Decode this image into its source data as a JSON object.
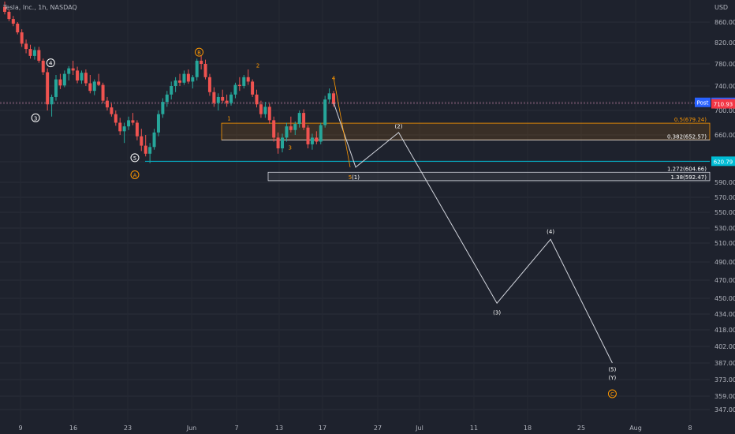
{
  "header": {
    "symbol_title": "Tesla, Inc., 1h, NASDAQ",
    "currency": "USD"
  },
  "chart_data": {
    "type": "candlestick",
    "title": "Tesla, Inc., 1h, NASDAQ",
    "x_axis": {
      "labels": [
        "9",
        "16",
        "23",
        "Jun",
        "7",
        "13",
        "17",
        "27",
        "Jul",
        "11",
        "18",
        "25",
        "Aug",
        "8"
      ]
    },
    "y_axis": {
      "unit": "USD",
      "range": [
        340,
        888
      ],
      "ticks": [
        860,
        820,
        780,
        740,
        700,
        660,
        620,
        590,
        570,
        550,
        530,
        510,
        490,
        470,
        450,
        434,
        418,
        402,
        387,
        373,
        359,
        347
      ]
    },
    "price_badges": [
      {
        "label": "Post",
        "value": "713.28",
        "color": "#2962ff"
      },
      {
        "value": "710.93",
        "color": "#f23645"
      },
      {
        "value": "620.79",
        "color": "#00bcd4"
      }
    ],
    "candles_sampled": [
      {
        "o": 890,
        "h": 900,
        "l": 875,
        "c": 880
      },
      {
        "o": 880,
        "h": 884,
        "l": 862,
        "c": 866
      },
      {
        "o": 866,
        "h": 872,
        "l": 852,
        "c": 857
      },
      {
        "o": 857,
        "h": 860,
        "l": 836,
        "c": 840
      },
      {
        "o": 840,
        "h": 846,
        "l": 812,
        "c": 818
      },
      {
        "o": 818,
        "h": 826,
        "l": 800,
        "c": 808
      },
      {
        "o": 808,
        "h": 816,
        "l": 790,
        "c": 795
      },
      {
        "o": 795,
        "h": 812,
        "l": 788,
        "c": 806
      },
      {
        "o": 806,
        "h": 812,
        "l": 782,
        "c": 786
      },
      {
        "o": 786,
        "h": 790,
        "l": 760,
        "c": 765
      },
      {
        "o": 765,
        "h": 772,
        "l": 700,
        "c": 710
      },
      {
        "o": 710,
        "h": 726,
        "l": 690,
        "c": 722
      },
      {
        "o": 722,
        "h": 760,
        "l": 716,
        "c": 752
      },
      {
        "o": 752,
        "h": 762,
        "l": 735,
        "c": 741
      },
      {
        "o": 741,
        "h": 768,
        "l": 738,
        "c": 762
      },
      {
        "o": 762,
        "h": 776,
        "l": 750,
        "c": 772
      },
      {
        "o": 772,
        "h": 786,
        "l": 760,
        "c": 768
      },
      {
        "o": 768,
        "h": 775,
        "l": 745,
        "c": 750
      },
      {
        "o": 750,
        "h": 768,
        "l": 744,
        "c": 764
      },
      {
        "o": 764,
        "h": 770,
        "l": 740,
        "c": 745
      },
      {
        "o": 745,
        "h": 760,
        "l": 728,
        "c": 732
      },
      {
        "o": 732,
        "h": 752,
        "l": 725,
        "c": 748
      },
      {
        "o": 748,
        "h": 762,
        "l": 740,
        "c": 742
      },
      {
        "o": 742,
        "h": 746,
        "l": 712,
        "c": 716
      },
      {
        "o": 716,
        "h": 722,
        "l": 700,
        "c": 705
      },
      {
        "o": 705,
        "h": 712,
        "l": 690,
        "c": 694
      },
      {
        "o": 694,
        "h": 700,
        "l": 675,
        "c": 680
      },
      {
        "o": 680,
        "h": 688,
        "l": 660,
        "c": 666
      },
      {
        "o": 666,
        "h": 680,
        "l": 648,
        "c": 674
      },
      {
        "o": 674,
        "h": 690,
        "l": 668,
        "c": 684
      },
      {
        "o": 684,
        "h": 696,
        "l": 676,
        "c": 680
      },
      {
        "o": 680,
        "h": 684,
        "l": 652,
        "c": 658
      },
      {
        "o": 658,
        "h": 670,
        "l": 636,
        "c": 644
      },
      {
        "o": 644,
        "h": 660,
        "l": 628,
        "c": 632
      },
      {
        "o": 632,
        "h": 648,
        "l": 618,
        "c": 642
      },
      {
        "o": 642,
        "h": 670,
        "l": 638,
        "c": 664
      },
      {
        "o": 664,
        "h": 700,
        "l": 658,
        "c": 694
      },
      {
        "o": 694,
        "h": 720,
        "l": 688,
        "c": 714
      },
      {
        "o": 714,
        "h": 732,
        "l": 706,
        "c": 726
      },
      {
        "o": 726,
        "h": 748,
        "l": 718,
        "c": 740
      },
      {
        "o": 740,
        "h": 756,
        "l": 730,
        "c": 750
      },
      {
        "o": 750,
        "h": 762,
        "l": 740,
        "c": 746
      },
      {
        "o": 746,
        "h": 768,
        "l": 742,
        "c": 762
      },
      {
        "o": 762,
        "h": 770,
        "l": 744,
        "c": 748
      },
      {
        "o": 748,
        "h": 760,
        "l": 736,
        "c": 756
      },
      {
        "o": 756,
        "h": 790,
        "l": 750,
        "c": 786
      },
      {
        "o": 786,
        "h": 796,
        "l": 770,
        "c": 780
      },
      {
        "o": 780,
        "h": 788,
        "l": 752,
        "c": 756
      },
      {
        "o": 756,
        "h": 762,
        "l": 724,
        "c": 730
      },
      {
        "o": 730,
        "h": 738,
        "l": 706,
        "c": 712
      },
      {
        "o": 712,
        "h": 728,
        "l": 700,
        "c": 722
      },
      {
        "o": 722,
        "h": 734,
        "l": 712,
        "c": 716
      },
      {
        "o": 716,
        "h": 726,
        "l": 706,
        "c": 712
      },
      {
        "o": 712,
        "h": 730,
        "l": 708,
        "c": 726
      },
      {
        "o": 726,
        "h": 746,
        "l": 720,
        "c": 742
      },
      {
        "o": 742,
        "h": 756,
        "l": 732,
        "c": 740
      },
      {
        "o": 740,
        "h": 760,
        "l": 736,
        "c": 756
      },
      {
        "o": 756,
        "h": 770,
        "l": 742,
        "c": 748
      },
      {
        "o": 748,
        "h": 752,
        "l": 722,
        "c": 726
      },
      {
        "o": 726,
        "h": 734,
        "l": 705,
        "c": 710
      },
      {
        "o": 710,
        "h": 716,
        "l": 688,
        "c": 694
      },
      {
        "o": 694,
        "h": 714,
        "l": 688,
        "c": 706
      },
      {
        "o": 706,
        "h": 712,
        "l": 678,
        "c": 684
      },
      {
        "o": 684,
        "h": 690,
        "l": 650,
        "c": 656
      },
      {
        "o": 656,
        "h": 664,
        "l": 632,
        "c": 640
      },
      {
        "o": 640,
        "h": 662,
        "l": 634,
        "c": 656
      },
      {
        "o": 656,
        "h": 680,
        "l": 650,
        "c": 674
      },
      {
        "o": 674,
        "h": 690,
        "l": 664,
        "c": 668
      },
      {
        "o": 668,
        "h": 682,
        "l": 660,
        "c": 678
      },
      {
        "o": 678,
        "h": 700,
        "l": 672,
        "c": 696
      },
      {
        "o": 696,
        "h": 702,
        "l": 668,
        "c": 672
      },
      {
        "o": 672,
        "h": 676,
        "l": 640,
        "c": 646
      },
      {
        "o": 646,
        "h": 662,
        "l": 638,
        "c": 656
      },
      {
        "o": 656,
        "h": 666,
        "l": 646,
        "c": 650
      },
      {
        "o": 650,
        "h": 680,
        "l": 646,
        "c": 676
      },
      {
        "o": 676,
        "h": 724,
        "l": 672,
        "c": 718
      },
      {
        "o": 718,
        "h": 736,
        "l": 712,
        "c": 728
      },
      {
        "o": 728,
        "h": 732,
        "l": 706,
        "c": 711
      }
    ],
    "horizontal_lines": [
      {
        "value": 620.79,
        "color": "#00bcd4"
      },
      {
        "value": 713.28,
        "color": "#9c6b8a"
      },
      {
        "value": 710.93,
        "color": "#9c6b8a"
      }
    ],
    "fib_zones": [
      {
        "top": 679.24,
        "bottom": 652.57,
        "fill": "rgba(255,152,0,0.12)",
        "labels": [
          "0.5(679.24)",
          "0.382(652.57)"
        ]
      },
      {
        "top": 604.66,
        "bottom": 592.47,
        "fill": "rgba(255,255,255,0.06)",
        "labels": [
          "1.272(604.66)",
          "1.38(592.47)"
        ]
      }
    ],
    "projection_path": [
      {
        "x": "Jun 19",
        "y": 713
      },
      {
        "x": "Jun 23",
        "y": 612,
        "label": "(1)"
      },
      {
        "x": "Jun 29",
        "y": 664,
        "label": "(2)"
      },
      {
        "x": "Jul 14",
        "y": 445,
        "label": "(3)"
      },
      {
        "x": "Jul 21",
        "y": 515,
        "label": "(4)"
      },
      {
        "x": "Jul 29",
        "y": 387,
        "label": "(5)"
      }
    ],
    "wave_labels": [
      {
        "text": "4",
        "x": "May 13",
        "y": 782,
        "style": "circle-white"
      },
      {
        "text": "3",
        "x": "May 11",
        "y": 688,
        "style": "circle-white"
      },
      {
        "text": "5",
        "x": "May 24",
        "y": 626,
        "style": "circle-white"
      },
      {
        "text": "A",
        "x": "May 24",
        "y": 601,
        "style": "circle-orange"
      },
      {
        "text": "B",
        "x": "Jun 2",
        "y": 802,
        "style": "circle-orange"
      },
      {
        "text": "1",
        "x": "Jun 6",
        "y": 688,
        "style": "orange"
      },
      {
        "text": "2",
        "x": "Jun 10",
        "y": 778,
        "style": "orange"
      },
      {
        "text": "3",
        "x": "Jun 14",
        "y": 642,
        "style": "orange"
      },
      {
        "text": "4",
        "x": "Jun 19",
        "y": 755,
        "style": "orange"
      },
      {
        "text": "5",
        "x": "Jun 22",
        "y": 598,
        "style": "orange"
      },
      {
        "text": "(1)",
        "x": "Jun 23",
        "y": 598,
        "style": "white"
      },
      {
        "text": "(2)",
        "x": "Jun 29",
        "y": 675,
        "style": "white"
      },
      {
        "text": "(3)",
        "x": "Jul 14",
        "y": 436,
        "style": "white"
      },
      {
        "text": "(4)",
        "x": "Jul 21",
        "y": 526,
        "style": "white"
      },
      {
        "text": "(5)",
        "x": "Jul 29",
        "y": 382,
        "style": "white"
      },
      {
        "text": "(Y)",
        "x": "Jul 29",
        "y": 375,
        "style": "white-large"
      },
      {
        "text": "C",
        "x": "Jul 29",
        "y": 361,
        "style": "circle-orange"
      }
    ],
    "colors": {
      "up": "#26a69a",
      "down": "#ef5350",
      "background": "#1e222d",
      "orange": "#ff9800"
    }
  }
}
